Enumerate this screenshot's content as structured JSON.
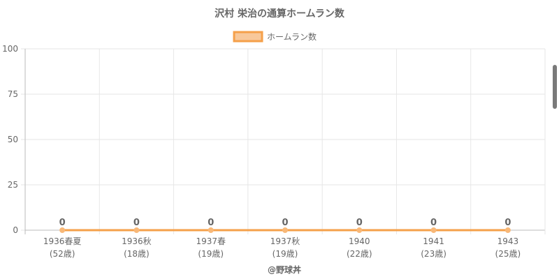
{
  "chart_data": {
    "type": "line",
    "title": "沢村 栄治の通算ホームラン数",
    "legend": {
      "label": "ホームラン数",
      "position": "top"
    },
    "categories": [
      [
        "1936春夏",
        "(52歳)"
      ],
      [
        "1936秋",
        "(18歳)"
      ],
      [
        "1937春",
        "(19歳)"
      ],
      [
        "1937秋",
        "(19歳)"
      ],
      [
        "1940",
        "(22歳)"
      ],
      [
        "1941",
        "(23歳)"
      ],
      [
        "1943",
        "(25歳)"
      ]
    ],
    "series": [
      {
        "name": "ホームラン数",
        "values": [
          0,
          0,
          0,
          0,
          0,
          0,
          0
        ]
      }
    ],
    "data_labels": [
      "0",
      "0",
      "0",
      "0",
      "0",
      "0",
      "0"
    ],
    "ylim": [
      0,
      100
    ],
    "yticks": [
      "0",
      "25",
      "50",
      "75",
      "100"
    ],
    "grid": true,
    "footer": "@野球丼",
    "colors": {
      "line": "#f5a04a",
      "legend_fill": "#f8c89a",
      "point_fill": "#f8b878",
      "grid": "#e6e6e6",
      "axis": "#bbbbbb",
      "text": "#666666"
    }
  }
}
